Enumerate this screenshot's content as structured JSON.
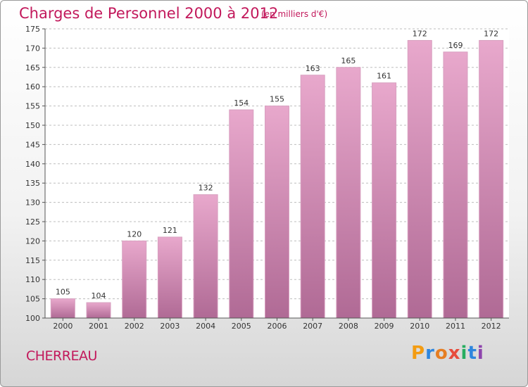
{
  "header": {
    "title": "Charges de Personnel 2000 à 2012",
    "unit_note": "(en milliers d'€)"
  },
  "footer": {
    "commune": "CHERREAU",
    "logo_letters": [
      "P",
      "r",
      "o",
      "x",
      "i",
      "t",
      "i"
    ],
    "logo_colors": [
      "#f39c12",
      "#2e86de",
      "#e67e22",
      "#e74c3c",
      "#27ae60",
      "#2e86de",
      "#8e44ad"
    ]
  },
  "colors": {
    "bar_top": "#e8a8cc",
    "bar_bottom": "#b06a95",
    "text_accent": "#c2185b"
  },
  "chart_data": {
    "type": "bar",
    "title": "Charges de Personnel 2000 à 2012",
    "ylabel": "",
    "xlabel": "",
    "categories": [
      "2000",
      "2001",
      "2002",
      "2003",
      "2004",
      "2005",
      "2006",
      "2007",
      "2008",
      "2009",
      "2010",
      "2011",
      "2012"
    ],
    "values": [
      105,
      104,
      120,
      121,
      132,
      154,
      155,
      163,
      165,
      161,
      172,
      169,
      172
    ],
    "ylim": [
      100,
      175
    ],
    "yticks": [
      100,
      105,
      110,
      115,
      120,
      125,
      130,
      135,
      140,
      145,
      150,
      155,
      160,
      165,
      170,
      175
    ],
    "grid": "horizontal dashed",
    "data_labels": true
  }
}
